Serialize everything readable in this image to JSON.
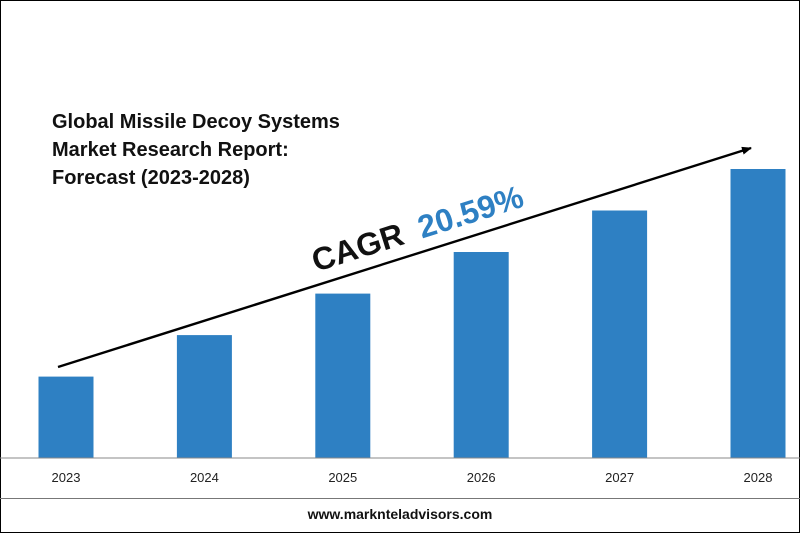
{
  "title_lines": [
    "Global Missile Decoy Systems",
    "Market Research Report:",
    "Forecast (2023-2028)"
  ],
  "cagr": {
    "label": "CAGR",
    "value": "20.59%"
  },
  "footer": {
    "website": "www.marknteladvisors.com"
  },
  "colors": {
    "bar": "#2e80c3",
    "cagr_value": "#2e80c3",
    "text": "#111111",
    "axis": "#888888"
  },
  "chart_data": {
    "type": "bar",
    "categories": [
      "2023",
      "2024",
      "2025",
      "2026",
      "2027",
      "2028"
    ],
    "values": [
      1.0,
      1.51,
      2.02,
      2.53,
      3.04,
      3.55
    ],
    "title": "Global Missile Decoy Systems Market Research Report: Forecast (2023-2028)",
    "xlabel": "",
    "ylabel": "",
    "ylim": [
      0,
      3.55
    ],
    "grid": false,
    "annotations": [
      "CAGR 20.59%"
    ]
  }
}
